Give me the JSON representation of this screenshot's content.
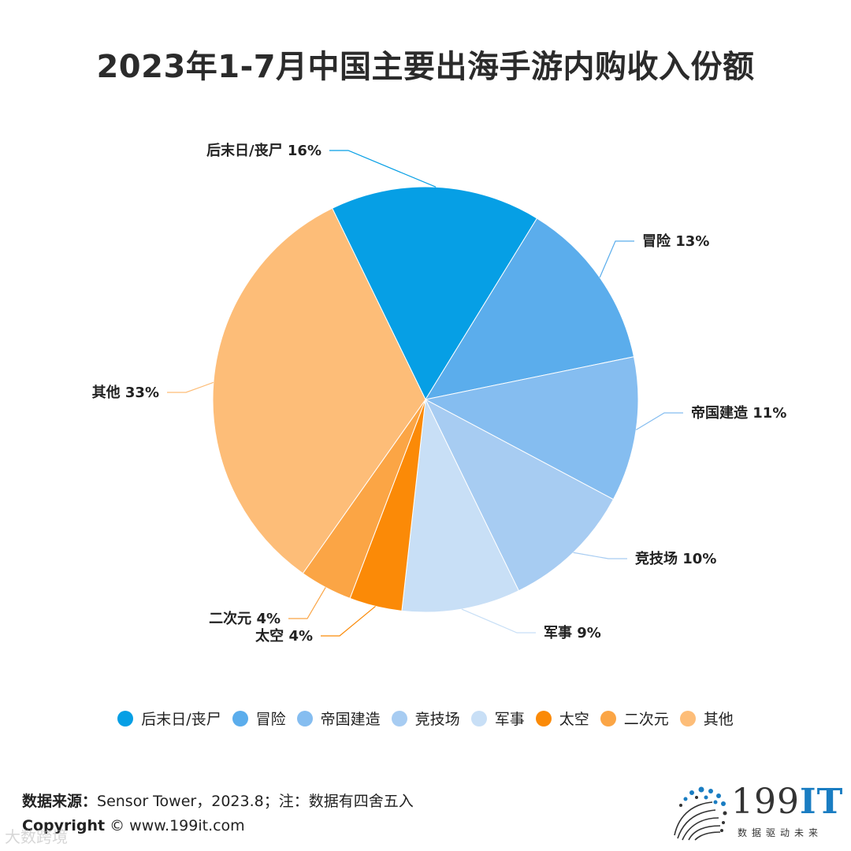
{
  "title": "2023年1-7月中国主要出海手游内购收入份额",
  "chart_data": {
    "type": "pie",
    "title": "2023年1-7月中国主要出海手游内购收入份额",
    "start_angle_deg": -26,
    "direction": "clockwise",
    "slices": [
      {
        "name": "后末日/丧尸",
        "value": 16,
        "label": "后末日/丧尸 16%",
        "color": "#069FE5"
      },
      {
        "name": "冒险",
        "value": 13,
        "label": "冒险 13%",
        "color": "#5BADEC"
      },
      {
        "name": "帝国建造",
        "value": 11,
        "label": "帝国建造 11%",
        "color": "#85BDF0"
      },
      {
        "name": "竞技场",
        "value": 10,
        "label": "竞技场 10%",
        "color": "#A7CCF2"
      },
      {
        "name": "军事",
        "value": 9,
        "label": "军事 9%",
        "color": "#C8DFF6"
      },
      {
        "name": "太空",
        "value": 4,
        "label": "太空 4%",
        "color": "#FB8A07"
      },
      {
        "name": "二次元",
        "value": 4,
        "label": "二次元 4%",
        "color": "#FBA545"
      },
      {
        "name": "其他",
        "value": 33,
        "label": "其他 33%",
        "color": "#FDBD78"
      }
    ],
    "legend_position": "bottom"
  },
  "legend": [
    "后末日/丧尸",
    "冒险",
    "帝国建造",
    "竞技场",
    "军事",
    "太空",
    "二次元",
    "其他"
  ],
  "footer": {
    "source_label": "数据来源：",
    "source_text": "Sensor Tower，2023.8；注：数据有四舍五入",
    "copyright_label": "Copyright",
    "copyright_text": "©  www.199it.com"
  },
  "brand": {
    "digits": "199",
    "it": "IT",
    "tagline": "数据驱动未来"
  },
  "watermark": "大数跨境"
}
